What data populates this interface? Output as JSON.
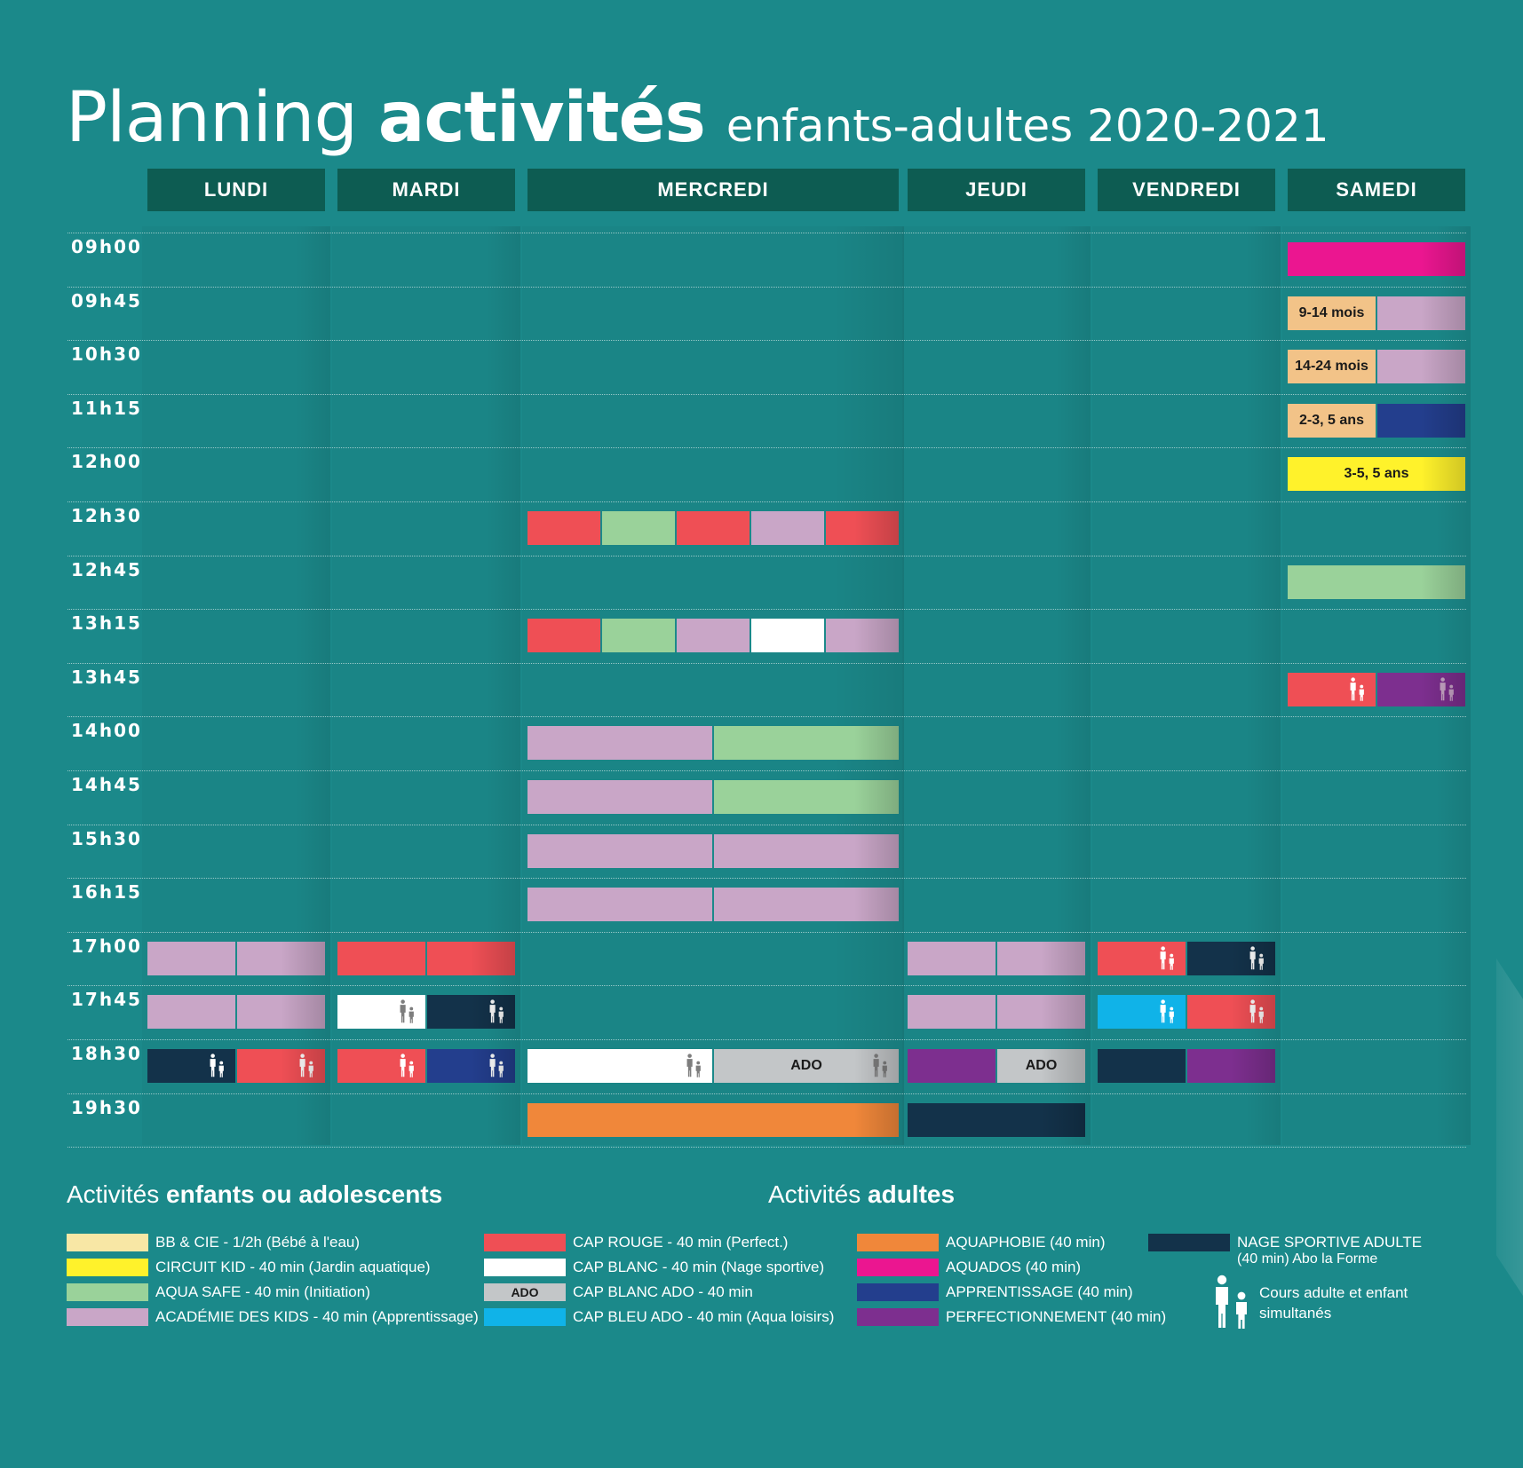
{
  "title": {
    "light": "Planning",
    "bold": "activités",
    "sub": "enfants-adultes 2020-2021"
  },
  "days": [
    "LUNDI",
    "MARDI",
    "MERCREDI",
    "JEUDI",
    "VENDREDI",
    "SAMEDI"
  ],
  "times": [
    "09h00",
    "09h45",
    "10h30",
    "11h15",
    "12h00",
    "12h30",
    "12h45",
    "13h15",
    "13h45",
    "14h00",
    "14h45",
    "15h30",
    "16h15",
    "17h00",
    "17h45",
    "18h30",
    "19h30"
  ],
  "activity_colors": {
    "bb_cie": "#f8e7a5",
    "circuit_kid": "#fff22b",
    "aqua_safe": "#9ad29a",
    "academie": "#c9a6c7",
    "cap_rouge": "#ef4f55",
    "cap_blanc": "#ffffff",
    "cap_blanc_ado": "#c3c6c8",
    "cap_bleu_ado": "#10b3e8",
    "aquaphobie": "#f0873a",
    "aquados": "#eb1690",
    "apprentissage": "#233e8d",
    "perfectionnement": "#7d2f8f",
    "nage_sportive": "#13324a",
    "age_band": "#f2c388"
  },
  "schedule": {
    "samedi": [
      {
        "time": "09h00",
        "segments": [
          {
            "activity": "aquados"
          }
        ]
      },
      {
        "time": "09h45",
        "segments": [
          {
            "activity": "age_band",
            "label": "9-14 mois"
          },
          {
            "activity": "academie"
          }
        ]
      },
      {
        "time": "10h30",
        "segments": [
          {
            "activity": "age_band",
            "label": "14-24 mois"
          },
          {
            "activity": "academie"
          }
        ]
      },
      {
        "time": "11h15",
        "segments": [
          {
            "activity": "age_band",
            "label": "2-3, 5 ans"
          },
          {
            "activity": "apprentissage"
          }
        ]
      },
      {
        "time": "12h00",
        "segments": [
          {
            "activity": "circuit_kid",
            "label": "3-5, 5 ans"
          }
        ]
      },
      {
        "time": "12h45",
        "segments": [
          {
            "activity": "aqua_safe"
          }
        ]
      },
      {
        "time": "13h45",
        "segments": [
          {
            "activity": "cap_rouge",
            "family": true
          },
          {
            "activity": "perfectionnement",
            "family": true
          }
        ]
      }
    ],
    "mercredi": [
      {
        "time": "12h30",
        "segments": [
          {
            "activity": "cap_rouge"
          },
          {
            "activity": "aqua_safe"
          },
          {
            "activity": "cap_rouge"
          },
          {
            "activity": "academie"
          },
          {
            "activity": "cap_rouge"
          }
        ]
      },
      {
        "time": "13h15",
        "segments": [
          {
            "activity": "cap_rouge"
          },
          {
            "activity": "aqua_safe"
          },
          {
            "activity": "academie"
          },
          {
            "activity": "cap_blanc"
          },
          {
            "activity": "academie"
          }
        ]
      },
      {
        "time": "14h00",
        "segments": [
          {
            "activity": "academie"
          },
          {
            "activity": "aqua_safe"
          }
        ]
      },
      {
        "time": "14h45",
        "segments": [
          {
            "activity": "academie"
          },
          {
            "activity": "aqua_safe"
          }
        ]
      },
      {
        "time": "15h30",
        "segments": [
          {
            "activity": "academie"
          },
          {
            "activity": "academie"
          }
        ]
      },
      {
        "time": "16h15",
        "segments": [
          {
            "activity": "academie"
          },
          {
            "activity": "academie"
          }
        ]
      },
      {
        "time": "18h30",
        "segments": [
          {
            "activity": "cap_blanc",
            "family": true
          },
          {
            "activity": "cap_blanc_ado",
            "label": "ADO",
            "family": true
          }
        ]
      },
      {
        "time": "19h30",
        "segments": [
          {
            "activity": "aquaphobie"
          }
        ]
      }
    ],
    "lundi": [
      {
        "time": "17h00",
        "segments": [
          {
            "activity": "academie"
          },
          {
            "activity": "academie"
          }
        ]
      },
      {
        "time": "17h45",
        "segments": [
          {
            "activity": "academie"
          },
          {
            "activity": "academie"
          }
        ]
      },
      {
        "time": "18h30",
        "segments": [
          {
            "activity": "nage_sportive",
            "family": true
          },
          {
            "activity": "cap_rouge",
            "family": true
          }
        ]
      }
    ],
    "mardi": [
      {
        "time": "17h00",
        "segments": [
          {
            "activity": "cap_rouge"
          },
          {
            "activity": "cap_rouge"
          }
        ]
      },
      {
        "time": "17h45",
        "segments": [
          {
            "activity": "cap_blanc",
            "family": true
          },
          {
            "activity": "nage_sportive",
            "family": true
          }
        ]
      },
      {
        "time": "18h30",
        "segments": [
          {
            "activity": "cap_rouge",
            "family": true
          },
          {
            "activity": "apprentissage",
            "family": true
          }
        ]
      }
    ],
    "jeudi": [
      {
        "time": "17h00",
        "segments": [
          {
            "activity": "academie"
          },
          {
            "activity": "academie"
          }
        ]
      },
      {
        "time": "17h45",
        "segments": [
          {
            "activity": "academie"
          },
          {
            "activity": "academie"
          }
        ]
      },
      {
        "time": "18h30",
        "segments": [
          {
            "activity": "perfectionnement"
          },
          {
            "activity": "cap_blanc_ado",
            "label": "ADO"
          }
        ]
      },
      {
        "time": "19h30",
        "segments": [
          {
            "activity": "nage_sportive"
          }
        ]
      }
    ],
    "vendredi": [
      {
        "time": "17h00",
        "segments": [
          {
            "activity": "cap_rouge",
            "family": true
          },
          {
            "activity": "nage_sportive",
            "family": true
          }
        ]
      },
      {
        "time": "17h45",
        "segments": [
          {
            "activity": "cap_bleu_ado",
            "family": true
          },
          {
            "activity": "cap_rouge",
            "family": true
          }
        ]
      },
      {
        "time": "18h30",
        "segments": [
          {
            "activity": "nage_sportive"
          },
          {
            "activity": "perfectionnement"
          }
        ]
      }
    ]
  },
  "legend": {
    "kids_title": {
      "light": "Activités",
      "bold": "enfants ou adolescents"
    },
    "adults_title": {
      "light": "Activités",
      "bold": "adultes"
    },
    "kids": [
      {
        "activity": "bb_cie",
        "text": "BB & CIE - 1/2h (Bébé à l'eau)"
      },
      {
        "activity": "circuit_kid",
        "text": "CIRCUIT KID - 40 min (Jardin aquatique)"
      },
      {
        "activity": "aqua_safe",
        "text": "AQUA SAFE - 40 min (Initiation)"
      },
      {
        "activity": "academie",
        "text": "ACADÉMIE DES KIDS - 40 min (Apprentissage)"
      },
      {
        "activity": "cap_rouge",
        "text": "CAP ROUGE - 40 min (Perfect.)"
      },
      {
        "activity": "cap_blanc",
        "text": "CAP BLANC - 40 min (Nage sportive)"
      },
      {
        "activity": "cap_blanc_ado",
        "text": "CAP BLANC ADO - 40 min",
        "swatch_label": "ADO"
      },
      {
        "activity": "cap_bleu_ado",
        "text": "CAP BLEU ADO - 40 min (Aqua loisirs)"
      }
    ],
    "adults": [
      {
        "activity": "aquaphobie",
        "text": "AQUAPHOBIE (40 min)"
      },
      {
        "activity": "aquados",
        "text": "AQUADOS (40 min)"
      },
      {
        "activity": "apprentissage",
        "text": "APPRENTISSAGE (40 min)"
      },
      {
        "activity": "perfectionnement",
        "text": "PERFECTIONNEMENT (40 min)"
      },
      {
        "activity": "nage_sportive",
        "text": "NAGE SPORTIVE ADULTE",
        "text2": "(40 min) Abo la Forme"
      }
    ],
    "family_note": {
      "line1": "Cours adulte et enfant",
      "line2": "simultanés",
      "icon": "parent-child-icon"
    }
  }
}
